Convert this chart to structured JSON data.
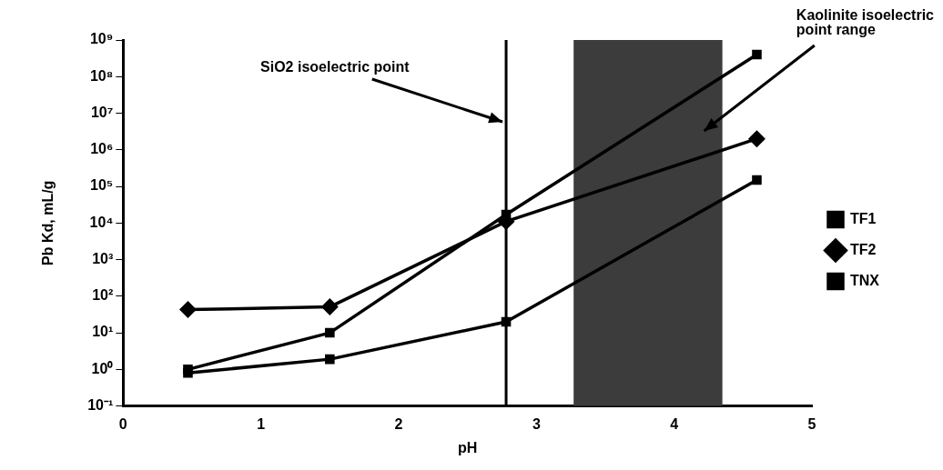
{
  "chart_data": {
    "type": "line",
    "xlabel": "pH",
    "ylabel": "Pb Kd, mL/g",
    "xlim": [
      0,
      5
    ],
    "xticks": [
      0,
      1,
      2,
      3,
      4,
      5
    ],
    "ylim": [
      0.1,
      1000000000
    ],
    "log": "y",
    "yticks": [
      {
        "value": 0.1,
        "label": "10⁻¹"
      },
      {
        "value": 1,
        "label": "10⁰"
      },
      {
        "value": 10,
        "label": "10¹"
      },
      {
        "value": 100,
        "label": "10²"
      },
      {
        "value": 1000,
        "label": "10³"
      },
      {
        "value": 10000,
        "label": "10⁴"
      },
      {
        "value": 100000,
        "label": "10⁵"
      },
      {
        "value": 1000000,
        "label": "10⁶"
      },
      {
        "value": 10000000,
        "label": "10⁷"
      },
      {
        "value": 100000000,
        "label": "10⁸"
      },
      {
        "value": 1000000000,
        "label": "10⁹"
      }
    ],
    "x": [
      0.47,
      1.5,
      2.78,
      4.6
    ],
    "series": [
      {
        "name": "TF1",
        "color": "#000000",
        "marker": "square",
        "values": [
          1,
          10,
          17000,
          400000000
        ]
      },
      {
        "name": "TF2",
        "color": "#000000",
        "marker": "diamond",
        "values": [
          43,
          51,
          11000,
          2000000
        ]
      },
      {
        "name": "TNX",
        "color": "#000000",
        "marker": "square",
        "values": [
          0.8,
          1.9,
          20,
          150000
        ]
      }
    ],
    "ref_lines": [
      {
        "axis": "x",
        "value": 2.78,
        "label": "SiO2 isoelectric point",
        "color": "#000000"
      }
    ],
    "bands": [
      {
        "axis": "x",
        "from": 3.27,
        "to": 4.35,
        "label": "Kaolinite isoelectric point range",
        "color": "#3c3c3c"
      }
    ],
    "grid": false,
    "legend": "right",
    "line_style": "solid"
  }
}
